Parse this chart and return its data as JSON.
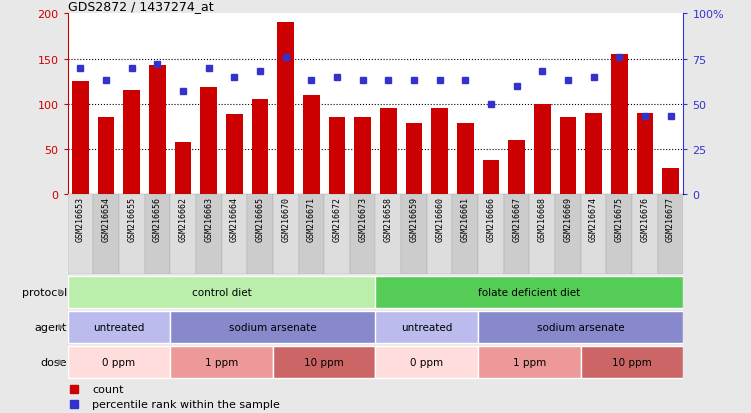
{
  "title": "GDS2872 / 1437274_at",
  "samples": [
    "GSM216653",
    "GSM216654",
    "GSM216655",
    "GSM216656",
    "GSM216662",
    "GSM216663",
    "GSM216664",
    "GSM216665",
    "GSM216670",
    "GSM216671",
    "GSM216672",
    "GSM216673",
    "GSM216658",
    "GSM216659",
    "GSM216660",
    "GSM216661",
    "GSM216666",
    "GSM216667",
    "GSM216668",
    "GSM216669",
    "GSM216674",
    "GSM216675",
    "GSM216676",
    "GSM216677"
  ],
  "counts": [
    125,
    85,
    115,
    143,
    57,
    118,
    88,
    105,
    190,
    110,
    85,
    85,
    95,
    78,
    95,
    78,
    37,
    60,
    100,
    85,
    90,
    155,
    90,
    28
  ],
  "percentile": [
    70,
    63,
    70,
    72,
    57,
    70,
    65,
    68,
    76,
    63,
    65,
    63,
    63,
    63,
    63,
    63,
    50,
    60,
    68,
    63,
    65,
    76,
    43,
    43
  ],
  "bar_color": "#cc0000",
  "dot_color": "#3333cc",
  "left_ylim": [
    0,
    200
  ],
  "right_ylim": [
    0,
    100
  ],
  "left_yticks": [
    0,
    50,
    100,
    150,
    200
  ],
  "left_yticklabels": [
    "0",
    "50",
    "100",
    "150",
    "200"
  ],
  "right_yticks": [
    0,
    25,
    50,
    75,
    100
  ],
  "right_yticklabels": [
    "0",
    "25",
    "50",
    "75",
    "100%"
  ],
  "grid_values": [
    50,
    100,
    150
  ],
  "protocol_labels": [
    "control diet",
    "folate deficient diet"
  ],
  "protocol_ranges": [
    [
      0,
      11
    ],
    [
      12,
      23
    ]
  ],
  "protocol_colors": [
    "#bbeeaa",
    "#55cc55"
  ],
  "agent_labels": [
    "untreated",
    "sodium arsenate",
    "untreated",
    "sodium arsenate"
  ],
  "agent_ranges": [
    [
      0,
      3
    ],
    [
      4,
      11
    ],
    [
      12,
      15
    ],
    [
      16,
      23
    ]
  ],
  "agent_colors": [
    "#bbbbee",
    "#8888cc",
    "#bbbbee",
    "#8888cc"
  ],
  "dose_labels": [
    "0 ppm",
    "1 ppm",
    "10 ppm",
    "0 ppm",
    "1 ppm",
    "10 ppm"
  ],
  "dose_ranges": [
    [
      0,
      3
    ],
    [
      4,
      7
    ],
    [
      8,
      11
    ],
    [
      12,
      15
    ],
    [
      16,
      19
    ],
    [
      20,
      23
    ]
  ],
  "dose_colors": [
    "#ffdddd",
    "#ee9999",
    "#cc6666",
    "#ffdddd",
    "#ee9999",
    "#cc6666"
  ],
  "legend_count_label": "count",
  "legend_pct_label": "percentile rank within the sample",
  "bg_color": "#e8e8e8",
  "plot_bg": "#ffffff",
  "xlabels_bg": "#cccccc"
}
